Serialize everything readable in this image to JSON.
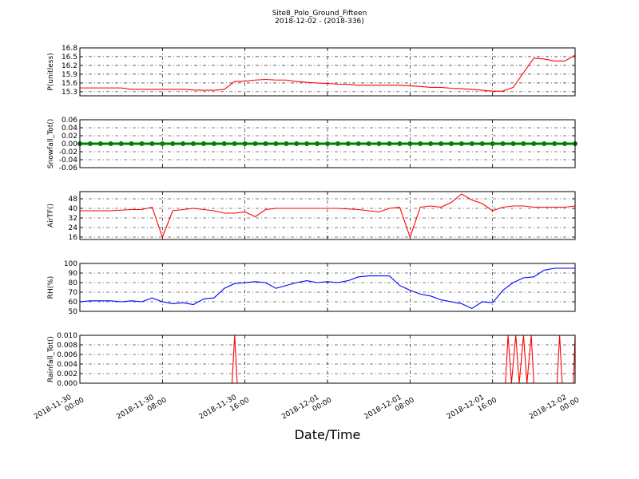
{
  "title": "Site8_Polo_Ground_Fifteen",
  "subtitle": "2018-12-02 - (2018-336)",
  "xlabel": "Date/Time",
  "xlim": [
    "2018-11-30 00:00",
    "2018-12-02 00:00"
  ],
  "xticks": [
    "2018-11-30 00:00",
    "2018-11-30 08:00",
    "2018-11-30 16:00",
    "2018-12-01 00:00",
    "2018-12-01 08:00",
    "2018-12-01 16:00",
    "2018-12-02 00:00"
  ],
  "chart_data": [
    {
      "type": "line",
      "ylabel": "P(unitless)",
      "color": "#ff0000",
      "x": [
        "2018-11-30 00:00",
        "2018-11-30 01:00",
        "2018-11-30 02:00",
        "2018-11-30 03:00",
        "2018-11-30 04:00",
        "2018-11-30 05:00",
        "2018-11-30 06:00",
        "2018-11-30 07:00",
        "2018-11-30 08:00",
        "2018-11-30 09:00",
        "2018-11-30 10:00",
        "2018-11-30 11:00",
        "2018-11-30 12:00",
        "2018-11-30 13:00",
        "2018-11-30 14:00",
        "2018-11-30 15:00",
        "2018-11-30 16:00",
        "2018-11-30 17:00",
        "2018-11-30 18:00",
        "2018-11-30 19:00",
        "2018-11-30 20:00",
        "2018-11-30 21:00",
        "2018-11-30 22:00",
        "2018-11-30 23:00",
        "2018-12-01 00:00",
        "2018-12-01 01:00",
        "2018-12-01 02:00",
        "2018-12-01 03:00",
        "2018-12-01 04:00",
        "2018-12-01 05:00",
        "2018-12-01 06:00",
        "2018-12-01 07:00",
        "2018-12-01 08:00",
        "2018-12-01 09:00",
        "2018-12-01 10:00",
        "2018-12-01 11:00",
        "2018-12-01 12:00",
        "2018-12-01 13:00",
        "2018-12-01 14:00",
        "2018-12-01 15:00",
        "2018-12-01 16:00",
        "2018-12-01 17:00",
        "2018-12-01 18:00",
        "2018-12-01 19:00",
        "2018-12-01 20:00",
        "2018-12-01 21:00",
        "2018-12-01 22:00",
        "2018-12-01 23:00",
        "2018-12-02 00:00"
      ],
      "values": [
        15.43,
        15.43,
        15.43,
        15.43,
        15.43,
        15.38,
        15.38,
        15.38,
        15.38,
        15.38,
        15.38,
        15.36,
        15.35,
        15.35,
        15.38,
        15.65,
        15.66,
        15.7,
        15.72,
        15.7,
        15.7,
        15.65,
        15.62,
        15.6,
        15.58,
        15.56,
        15.55,
        15.52,
        15.52,
        15.52,
        15.52,
        15.52,
        15.5,
        15.48,
        15.45,
        15.45,
        15.42,
        15.4,
        15.38,
        15.35,
        15.32,
        15.32,
        15.45,
        15.95,
        16.45,
        16.42,
        16.35,
        16.35,
        16.55
      ],
      "ylim": [
        15.16,
        16.8
      ],
      "yticks": [
        15.3,
        15.6,
        15.9,
        16.2,
        16.5,
        16.8
      ],
      "grid": true
    },
    {
      "type": "line",
      "ylabel": "Snowfall_Tot()",
      "color": "#008000",
      "marker": true,
      "x": [
        "2018-11-30 00:00",
        "2018-11-30 01:00",
        "2018-11-30 02:00",
        "2018-11-30 03:00",
        "2018-11-30 04:00",
        "2018-11-30 05:00",
        "2018-11-30 06:00",
        "2018-11-30 07:00",
        "2018-11-30 08:00",
        "2018-11-30 09:00",
        "2018-11-30 10:00",
        "2018-11-30 11:00",
        "2018-11-30 12:00",
        "2018-11-30 13:00",
        "2018-11-30 14:00",
        "2018-11-30 15:00",
        "2018-11-30 16:00",
        "2018-11-30 17:00",
        "2018-11-30 18:00",
        "2018-11-30 19:00",
        "2018-11-30 20:00",
        "2018-11-30 21:00",
        "2018-11-30 22:00",
        "2018-11-30 23:00",
        "2018-12-01 00:00",
        "2018-12-01 01:00",
        "2018-12-01 02:00",
        "2018-12-01 03:00",
        "2018-12-01 04:00",
        "2018-12-01 05:00",
        "2018-12-01 06:00",
        "2018-12-01 07:00",
        "2018-12-01 08:00",
        "2018-12-01 09:00",
        "2018-12-01 10:00",
        "2018-12-01 11:00",
        "2018-12-01 12:00",
        "2018-12-01 13:00",
        "2018-12-01 14:00",
        "2018-12-01 15:00",
        "2018-12-01 16:00",
        "2018-12-01 17:00",
        "2018-12-01 18:00",
        "2018-12-01 19:00",
        "2018-12-01 20:00",
        "2018-12-01 21:00",
        "2018-12-01 22:00",
        "2018-12-01 23:00",
        "2018-12-02 00:00"
      ],
      "values": [
        0,
        0,
        0,
        0,
        0,
        0,
        0,
        0,
        0,
        0,
        0,
        0,
        0,
        0,
        0,
        0,
        0,
        0,
        0,
        0,
        0,
        0,
        0,
        0,
        0,
        0,
        0,
        0,
        0,
        0,
        0,
        0,
        0,
        0,
        0,
        0,
        0,
        0,
        0,
        0,
        0,
        0,
        0,
        0,
        0,
        0,
        0,
        0,
        0
      ],
      "ylim": [
        -0.06,
        0.06
      ],
      "yticks": [
        -0.06,
        -0.04,
        -0.02,
        {
          "value": 0,
          "label": "0.00"
        },
        0.02,
        0.04,
        0.06
      ],
      "grid": true
    },
    {
      "type": "line",
      "ylabel": "AirTF()",
      "color": "#ff0000",
      "x": [
        "2018-11-30 00:00",
        "2018-11-30 01:00",
        "2018-11-30 02:00",
        "2018-11-30 03:00",
        "2018-11-30 04:00",
        "2018-11-30 05:00",
        "2018-11-30 06:00",
        "2018-11-30 07:00",
        "2018-11-30 08:00",
        "2018-11-30 09:00",
        "2018-11-30 10:00",
        "2018-11-30 11:00",
        "2018-11-30 12:00",
        "2018-11-30 13:00",
        "2018-11-30 14:00",
        "2018-11-30 15:00",
        "2018-11-30 16:00",
        "2018-11-30 17:00",
        "2018-11-30 18:00",
        "2018-11-30 19:00",
        "2018-11-30 20:00",
        "2018-11-30 21:00",
        "2018-11-30 22:00",
        "2018-11-30 23:00",
        "2018-12-01 00:00",
        "2018-12-01 01:00",
        "2018-12-01 02:00",
        "2018-12-01 03:00",
        "2018-12-01 04:00",
        "2018-12-01 05:00",
        "2018-12-01 06:00",
        "2018-12-01 07:00",
        "2018-12-01 08:00",
        "2018-12-01 09:00",
        "2018-12-01 10:00",
        "2018-12-01 11:00",
        "2018-12-01 12:00",
        "2018-12-01 13:00",
        "2018-12-01 14:00",
        "2018-12-01 15:00",
        "2018-12-01 16:00",
        "2018-12-01 17:00",
        "2018-12-01 18:00",
        "2018-12-01 19:00",
        "2018-12-01 20:00",
        "2018-12-01 21:00",
        "2018-12-01 22:00",
        "2018-12-01 23:00",
        "2018-12-02 00:00"
      ],
      "values": [
        38,
        38,
        38,
        38,
        38.5,
        39,
        39,
        41,
        16,
        38,
        39,
        40,
        39,
        38,
        36,
        36,
        37,
        33,
        39,
        40,
        40,
        40,
        40,
        40,
        40,
        40,
        39.5,
        39,
        38,
        37,
        40,
        41,
        16,
        41,
        42,
        41,
        45,
        52,
        47,
        44,
        38,
        41,
        42,
        42,
        41,
        41,
        41,
        41,
        42
      ],
      "ylim": [
        14,
        54
      ],
      "yticks": [
        16,
        24,
        32,
        40,
        48
      ],
      "grid": true
    },
    {
      "type": "line",
      "ylabel": "RH(%)",
      "color": "#0000ff",
      "x": [
        "2018-11-30 00:00",
        "2018-11-30 01:00",
        "2018-11-30 02:00",
        "2018-11-30 03:00",
        "2018-11-30 04:00",
        "2018-11-30 05:00",
        "2018-11-30 06:00",
        "2018-11-30 07:00",
        "2018-11-30 08:00",
        "2018-11-30 09:00",
        "2018-11-30 10:00",
        "2018-11-30 11:00",
        "2018-11-30 12:00",
        "2018-11-30 13:00",
        "2018-11-30 14:00",
        "2018-11-30 15:00",
        "2018-11-30 16:00",
        "2018-11-30 17:00",
        "2018-11-30 18:00",
        "2018-11-30 19:00",
        "2018-11-30 20:00",
        "2018-11-30 21:00",
        "2018-11-30 22:00",
        "2018-11-30 23:00",
        "2018-12-01 00:00",
        "2018-12-01 01:00",
        "2018-12-01 02:00",
        "2018-12-01 03:00",
        "2018-12-01 04:00",
        "2018-12-01 05:00",
        "2018-12-01 06:00",
        "2018-12-01 07:00",
        "2018-12-01 08:00",
        "2018-12-01 09:00",
        "2018-12-01 10:00",
        "2018-12-01 11:00",
        "2018-12-01 12:00",
        "2018-12-01 13:00",
        "2018-12-01 14:00",
        "2018-12-01 15:00",
        "2018-12-01 16:00",
        "2018-12-01 17:00",
        "2018-12-01 18:00",
        "2018-12-01 19:00",
        "2018-12-01 20:00",
        "2018-12-01 21:00",
        "2018-12-01 22:00",
        "2018-12-01 23:00",
        "2018-12-02 00:00"
      ],
      "values": [
        60,
        61,
        61,
        61,
        60,
        61,
        60,
        64,
        60,
        58,
        59,
        57,
        63,
        64,
        74,
        79,
        80,
        81,
        80,
        74,
        77,
        80,
        82,
        80,
        81,
        80,
        82,
        86,
        87,
        87,
        87,
        77,
        72,
        68,
        66,
        62,
        60,
        58,
        53,
        60,
        59,
        72,
        80,
        85,
        86,
        93,
        95,
        95,
        95
      ],
      "ylim": [
        50,
        100
      ],
      "yticks": [
        50,
        60,
        70,
        80,
        90,
        100
      ],
      "grid": true
    },
    {
      "type": "line",
      "ylabel": "Rainfall_Tot()",
      "color": "#ff0000",
      "x": [
        "2018-11-30 00:00",
        "2018-11-30 14:45",
        "2018-11-30 15:00",
        "2018-11-30 15:15",
        "2018-12-01 17:15",
        "2018-12-01 17:30",
        "2018-12-01 17:50",
        "2018-12-01 18:15",
        "2018-12-01 18:35",
        "2018-12-01 19:00",
        "2018-12-01 19:20",
        "2018-12-01 19:45",
        "2018-12-01 20:00",
        "2018-12-01 22:15",
        "2018-12-01 22:30",
        "2018-12-01 22:45",
        "2018-12-01 23:50",
        "2018-12-02 00:00"
      ],
      "values": [
        0,
        0,
        0.01,
        0,
        0,
        0.01,
        0,
        0.01,
        0,
        0.01,
        0,
        0.01,
        0,
        0,
        0.01,
        0,
        0,
        0.01
      ],
      "ylim": [
        0,
        0.01
      ],
      "yticks": [
        {
          "value": 0,
          "label": "0.000"
        },
        {
          "value": 0.002,
          "label": "0.002"
        },
        {
          "value": 0.004,
          "label": "0.004"
        },
        {
          "value": 0.006,
          "label": "0.006"
        },
        {
          "value": 0.008,
          "label": "0.008"
        },
        {
          "value": 0.01,
          "label": "0.010"
        }
      ],
      "grid": true
    }
  ]
}
